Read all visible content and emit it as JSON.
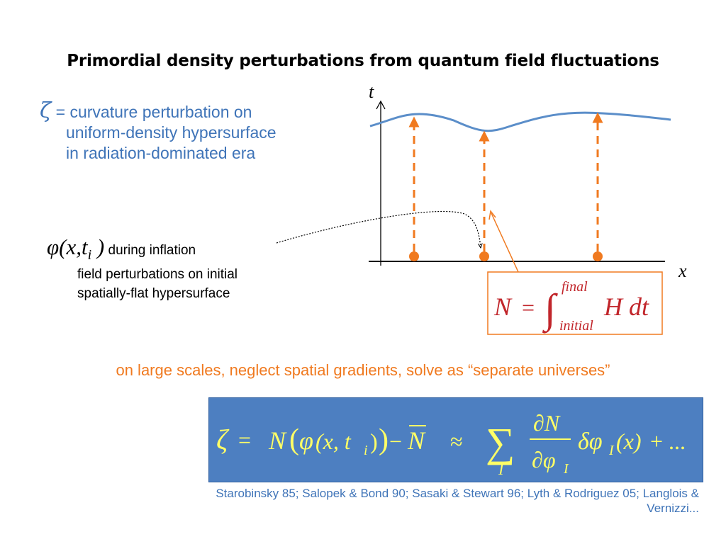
{
  "title": "Primordial density perturbations from quantum field fluctuations",
  "zeta": {
    "symbol": "ζ",
    "line1": " = curvature perturbation on",
    "line2": "uniform-density hypersurface",
    "line3": "in radiation-dominated era"
  },
  "phi": {
    "math": "φ(x,t",
    "sub": "i",
    "close": " )",
    "label": " during inflation",
    "line2": "field perturbations on initial",
    "line3": "spatially-flat hypersurface"
  },
  "diagram": {
    "t_axis_label": "t",
    "x_axis_label": "x",
    "efold_formula": {
      "lhs": "N",
      "equals": "=",
      "integral": "∫",
      "upper": "final",
      "lower": "initial",
      "integrand": "H dt"
    },
    "colors": {
      "axis": "#000000",
      "curve": "#5b8ec9",
      "arrows": "#f07a20",
      "box_border": "#f07a20"
    }
  },
  "separate_universes": "on large scales, neglect spatial gradients, solve as “separate universes”",
  "delta_n_formula": {
    "zeta": "ζ",
    "eq": "=",
    "N": "N",
    "phi": "φ",
    "args": "(x, t",
    "sub_i": "i",
    "close": ")",
    "minus": "−",
    "Nbar": "N",
    "approx": "≈",
    "sum": "∑",
    "sum_index": "I",
    "dN": "∂N",
    "dphi": "∂φ",
    "dphi_sub": "I",
    "delta_phi": "δφ",
    "delta_phi_sub": "I",
    "of_x": "(x)",
    "tail": "+ ...",
    "color_bg": "#4d7fc1",
    "color_text": "#ffff66"
  },
  "references": {
    "line1": "Starobinsky 85; Salopek & Bond 90; Sasaki & Stewart 96; Lyth & Rodriguez 05; Langlois &",
    "line2": "Vernizzi..."
  }
}
